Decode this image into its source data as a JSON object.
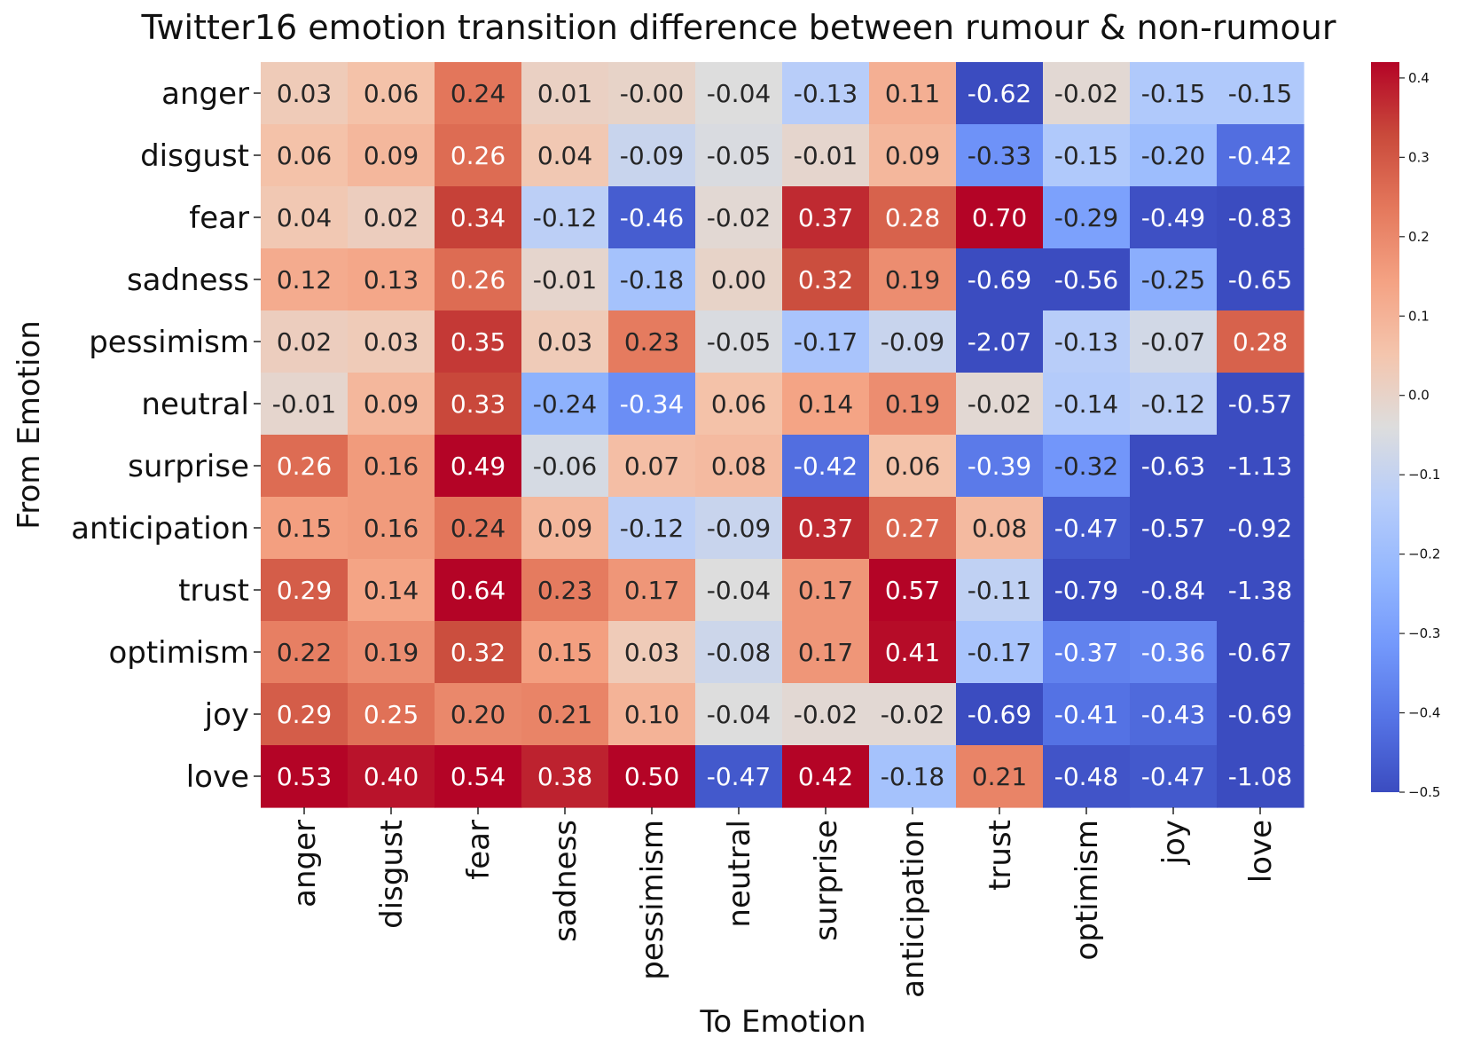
{
  "chart_data": {
    "type": "heatmap",
    "title": "Twitter16 emotion transition difference between rumour & non-rumour",
    "xlabel": "To Emotion",
    "ylabel": "From Emotion",
    "x_categories": [
      "anger",
      "disgust",
      "fear",
      "sadness",
      "pessimism",
      "neutral",
      "surprise",
      "anticipation",
      "trust",
      "optimism",
      "joy",
      "love"
    ],
    "y_categories": [
      "anger",
      "disgust",
      "fear",
      "sadness",
      "pessimism",
      "neutral",
      "surprise",
      "anticipation",
      "trust",
      "optimism",
      "joy",
      "love"
    ],
    "values": [
      [
        0.03,
        0.06,
        0.24,
        0.01,
        -0.0,
        -0.04,
        -0.13,
        0.11,
        -0.62,
        -0.02,
        -0.15,
        -0.15
      ],
      [
        0.06,
        0.09,
        0.26,
        0.04,
        -0.09,
        -0.05,
        -0.01,
        0.09,
        -0.33,
        -0.15,
        -0.2,
        -0.42
      ],
      [
        0.04,
        0.02,
        0.34,
        -0.12,
        -0.46,
        -0.02,
        0.37,
        0.28,
        0.7,
        -0.29,
        -0.49,
        -0.83
      ],
      [
        0.12,
        0.13,
        0.26,
        -0.01,
        -0.18,
        0.0,
        0.32,
        0.19,
        -0.69,
        -0.56,
        -0.25,
        -0.65
      ],
      [
        0.02,
        0.03,
        0.35,
        0.03,
        0.23,
        -0.05,
        -0.17,
        -0.09,
        -2.07,
        -0.13,
        -0.07,
        0.28
      ],
      [
        -0.01,
        0.09,
        0.33,
        -0.24,
        -0.34,
        0.06,
        0.14,
        0.19,
        -0.02,
        -0.14,
        -0.12,
        -0.57
      ],
      [
        0.26,
        0.16,
        0.49,
        -0.06,
        0.07,
        0.08,
        -0.42,
        0.06,
        -0.39,
        -0.32,
        -0.63,
        -1.13
      ],
      [
        0.15,
        0.16,
        0.24,
        0.09,
        -0.12,
        -0.09,
        0.37,
        0.27,
        0.08,
        -0.47,
        -0.57,
        -0.92
      ],
      [
        0.29,
        0.14,
        0.64,
        0.23,
        0.17,
        -0.04,
        0.17,
        0.57,
        -0.11,
        -0.79,
        -0.84,
        -1.38
      ],
      [
        0.22,
        0.19,
        0.32,
        0.15,
        0.03,
        -0.08,
        0.17,
        0.41,
        -0.17,
        -0.37,
        -0.36,
        -0.67
      ],
      [
        0.29,
        0.25,
        0.2,
        0.21,
        0.1,
        -0.04,
        -0.02,
        -0.02,
        -0.69,
        -0.41,
        -0.43,
        -0.69
      ],
      [
        0.53,
        0.4,
        0.54,
        0.38,
        0.5,
        -0.47,
        0.42,
        -0.18,
        0.21,
        -0.48,
        -0.47,
        -1.08
      ]
    ],
    "value_labels": [
      [
        "0.03",
        "0.06",
        "0.24",
        "0.01",
        "-0.00",
        "-0.04",
        "-0.13",
        "0.11",
        "-0.62",
        "-0.02",
        "-0.15",
        "-0.15"
      ],
      [
        "0.06",
        "0.09",
        "0.26",
        "0.04",
        "-0.09",
        "-0.05",
        "-0.01",
        "0.09",
        "-0.33",
        "-0.15",
        "-0.20",
        "-0.42"
      ],
      [
        "0.04",
        "0.02",
        "0.34",
        "-0.12",
        "-0.46",
        "-0.02",
        "0.37",
        "0.28",
        "0.70",
        "-0.29",
        "-0.49",
        "-0.83"
      ],
      [
        "0.12",
        "0.13",
        "0.26",
        "-0.01",
        "-0.18",
        "0.00",
        "0.32",
        "0.19",
        "-0.69",
        "-0.56",
        "-0.25",
        "-0.65"
      ],
      [
        "0.02",
        "0.03",
        "0.35",
        "0.03",
        "0.23",
        "-0.05",
        "-0.17",
        "-0.09",
        "-2.07",
        "-0.13",
        "-0.07",
        "0.28"
      ],
      [
        "-0.01",
        "0.09",
        "0.33",
        "-0.24",
        "-0.34",
        "0.06",
        "0.14",
        "0.19",
        "-0.02",
        "-0.14",
        "-0.12",
        "-0.57"
      ],
      [
        "0.26",
        "0.16",
        "0.49",
        "-0.06",
        "0.07",
        "0.08",
        "-0.42",
        "0.06",
        "-0.39",
        "-0.32",
        "-0.63",
        "-1.13"
      ],
      [
        "0.15",
        "0.16",
        "0.24",
        "0.09",
        "-0.12",
        "-0.09",
        "0.37",
        "0.27",
        "0.08",
        "-0.47",
        "-0.57",
        "-0.92"
      ],
      [
        "0.29",
        "0.14",
        "0.64",
        "0.23",
        "0.17",
        "-0.04",
        "0.17",
        "0.57",
        "-0.11",
        "-0.79",
        "-0.84",
        "-1.38"
      ],
      [
        "0.22",
        "0.19",
        "0.32",
        "0.15",
        "0.03",
        "-0.08",
        "0.17",
        "0.41",
        "-0.17",
        "-0.37",
        "-0.36",
        "-0.67"
      ],
      [
        "0.29",
        "0.25",
        "0.20",
        "0.21",
        "0.10",
        "-0.04",
        "-0.02",
        "-0.02",
        "-0.69",
        "-0.41",
        "-0.43",
        "-0.69"
      ],
      [
        "0.53",
        "0.40",
        "0.54",
        "0.38",
        "0.50",
        "-0.47",
        "0.42",
        "-0.18",
        "0.21",
        "-0.48",
        "-0.47",
        "-1.08"
      ]
    ],
    "colormap": "coolwarm",
    "vmin": -0.5,
    "vmax": 0.42,
    "colorbar_ticks": [
      0.4,
      0.3,
      0.2,
      0.1,
      0.0,
      -0.1,
      -0.2,
      -0.3,
      -0.4,
      -0.5
    ],
    "colorbar_tick_labels": [
      "0.4",
      "0.3",
      "0.2",
      "0.1",
      "0.0",
      "−0.1",
      "−0.2",
      "−0.3",
      "−0.4",
      "−0.5"
    ],
    "colorbar_position": "right"
  }
}
